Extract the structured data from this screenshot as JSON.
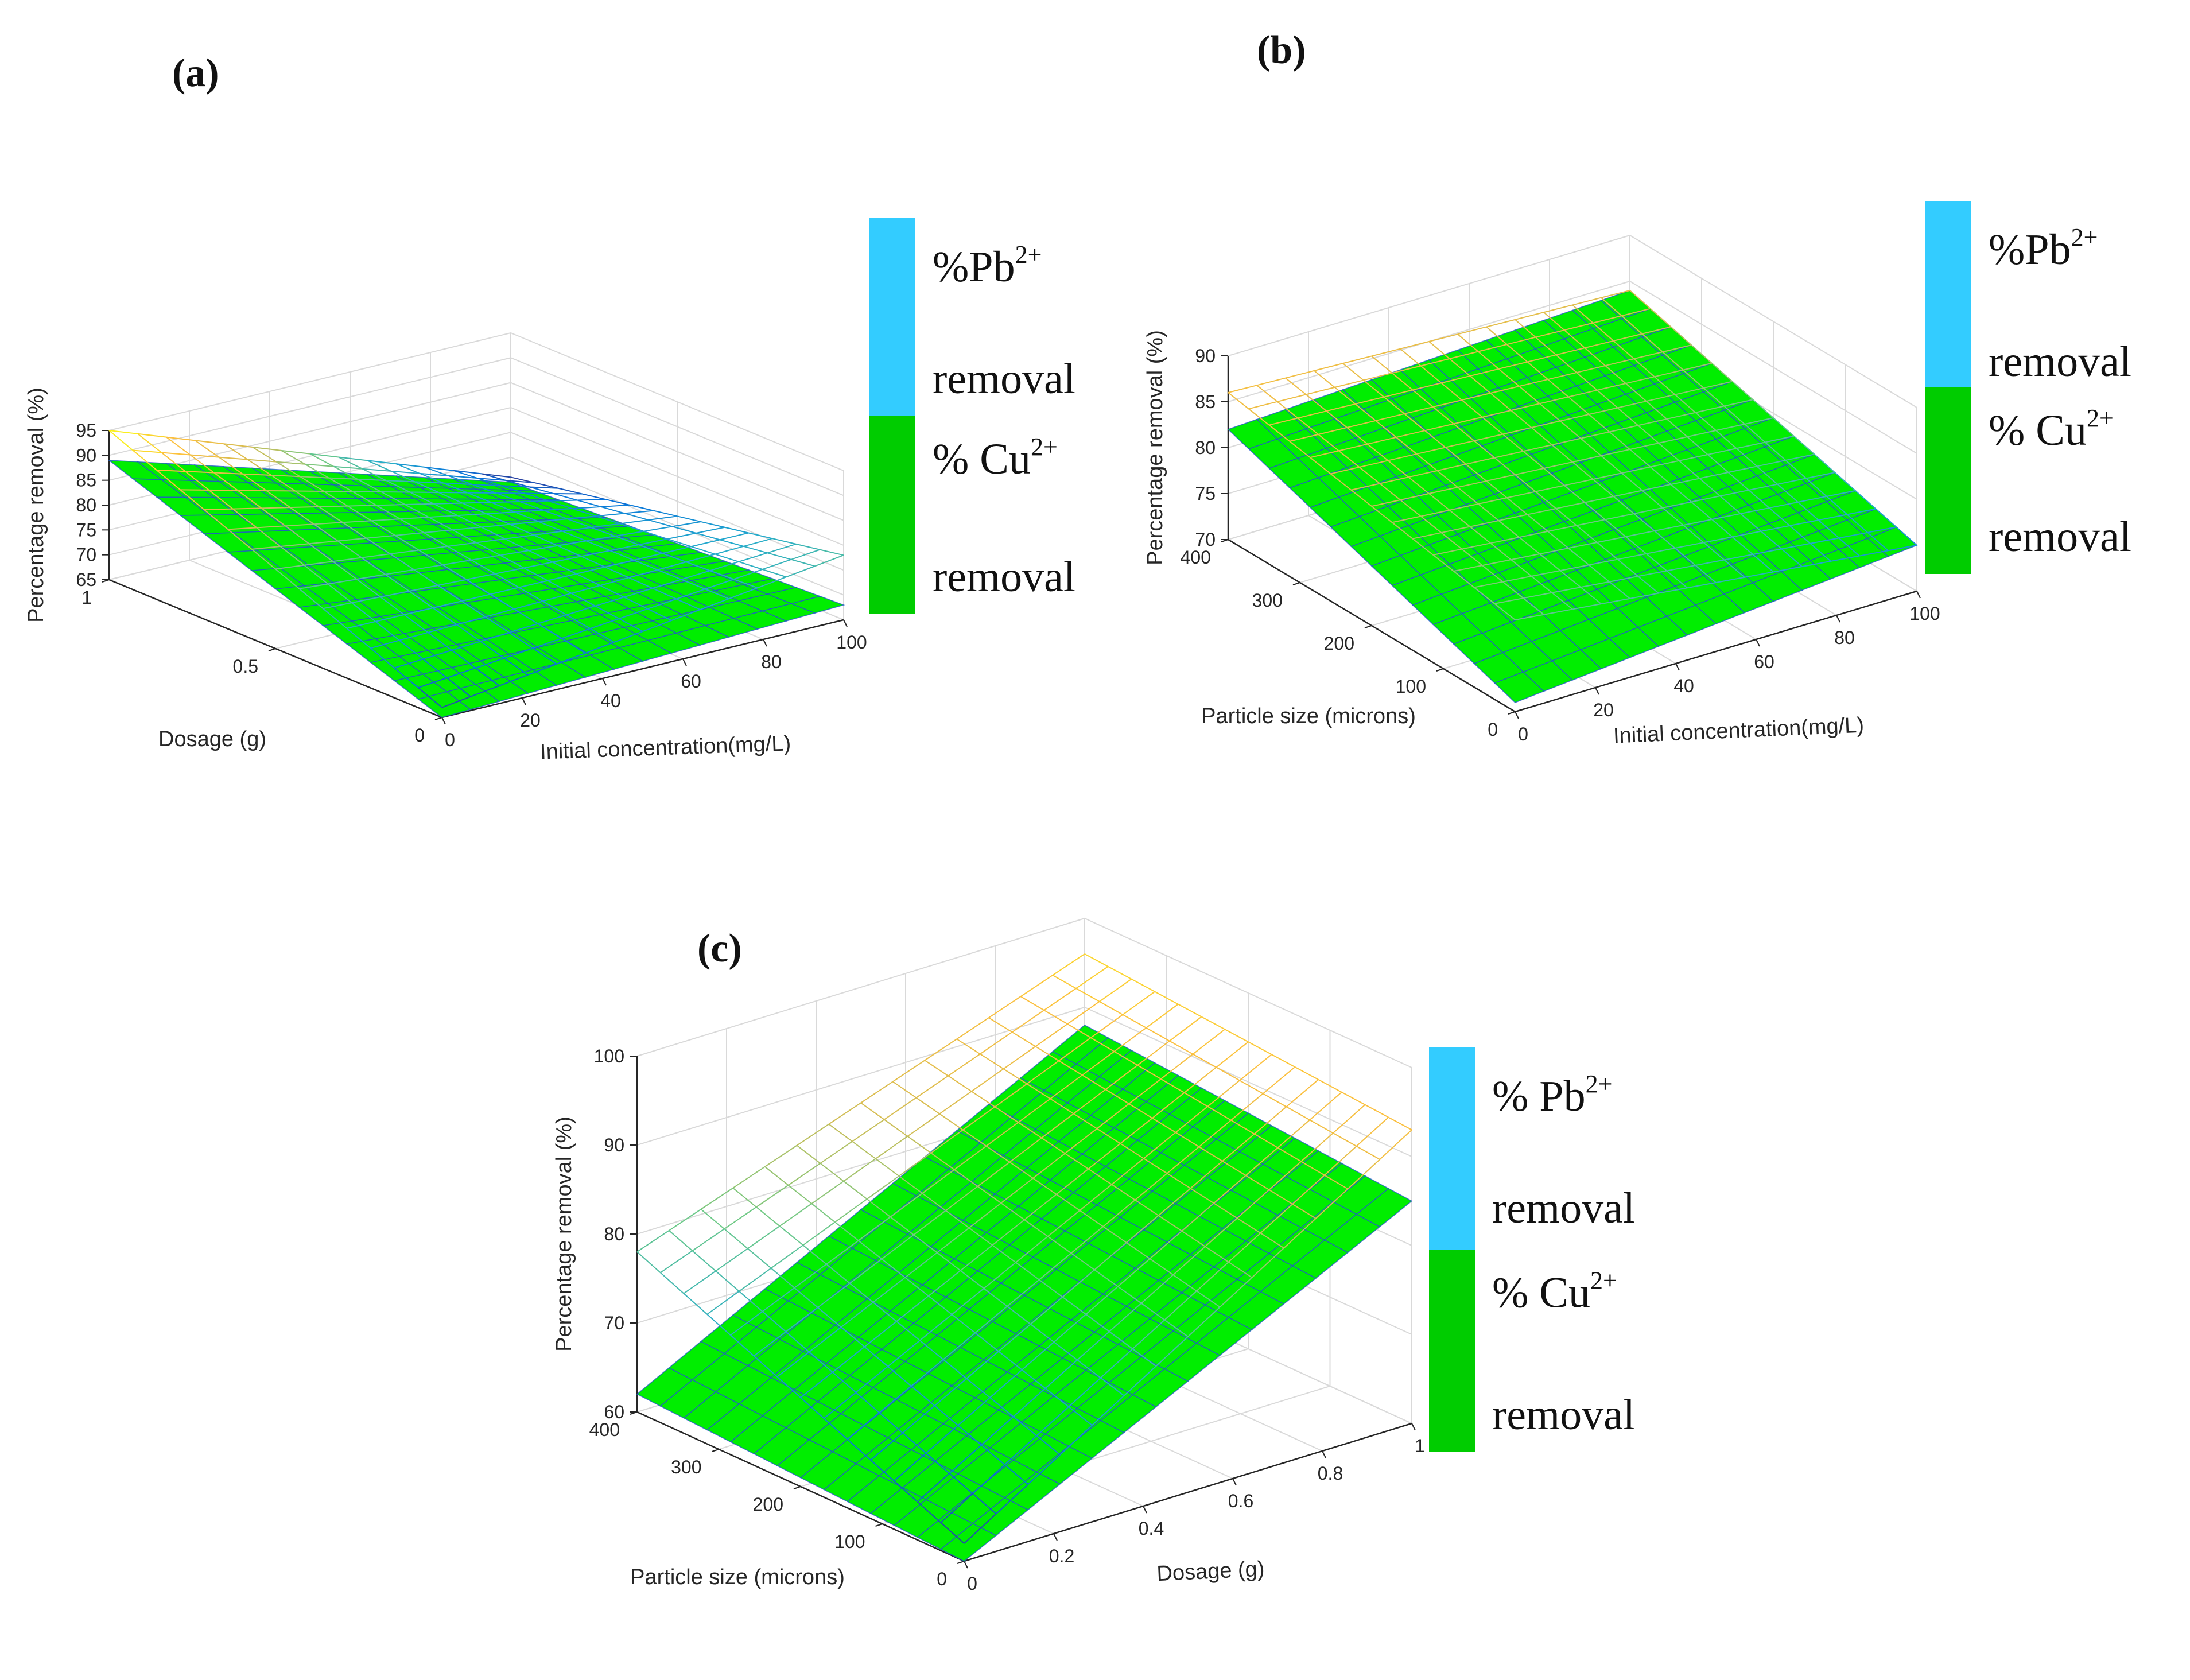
{
  "colors": {
    "pb_legend": "#33ccff",
    "cu_legend": "#00cc00",
    "cu_surface": "#00ee00",
    "cu_grid": "#2255cc",
    "axis": "#262626",
    "grid": "#d9d9d9"
  },
  "chart_data": [
    {
      "type": "surface",
      "panel_label": "(a)",
      "zlabel": "Percentage removal (%)",
      "xlabel": "Initial concentration(mg/L)",
      "ylabel": "Dosage (g)",
      "xlim": [
        0,
        100
      ],
      "ylim": [
        0,
        1
      ],
      "zlim": [
        65,
        95
      ],
      "xticks": [
        "0",
        "20",
        "40",
        "60",
        "80",
        "100"
      ],
      "yticks": [
        "0",
        "0.5",
        "1"
      ],
      "zticks": [
        "65",
        "70",
        "75",
        "80",
        "85",
        "90",
        "95"
      ],
      "series": [
        {
          "name": "Pb removal",
          "corners": {
            "x0_y0": 67,
            "x100_y0": 78,
            "x0_y1": 95,
            "x100_y1": 66
          }
        },
        {
          "name": "Cu removal",
          "corners": {
            "x0_y0": 65,
            "x100_y0": 68,
            "x0_y1": 89,
            "x100_y1": 65
          }
        }
      ],
      "legend": {
        "pb_prefix": "%Pb",
        "pb_sup": "2+",
        "pb_line2": "removal",
        "cu_prefix": "% Cu",
        "cu_sup": "2+",
        "cu_line2": "removal"
      }
    },
    {
      "type": "surface",
      "panel_label": "(b)",
      "zlabel": "Percentage removal (%)",
      "xlabel": "Initial concentration(mg/L)",
      "ylabel": "Particle size (microns)",
      "xlim": [
        0,
        100
      ],
      "ylim": [
        0,
        400
      ],
      "zlim": [
        70,
        90
      ],
      "xticks": [
        "0",
        "20",
        "40",
        "60",
        "80",
        "100"
      ],
      "yticks": [
        "0",
        "100",
        "200",
        "300",
        "400"
      ],
      "zticks": [
        "70",
        "75",
        "80",
        "85",
        "90"
      ],
      "series": [
        {
          "name": "Pb removal",
          "corners": {
            "x0_y0": 80,
            "x100_y0": 75,
            "x0_y1": 86,
            "x100_y1": 84
          }
        },
        {
          "name": "Cu removal",
          "corners": {
            "x0_y0": 71,
            "x100_y0": 75,
            "x0_y1": 82,
            "x100_y1": 84
          }
        }
      ],
      "legend": {
        "pb_prefix": "%Pb",
        "pb_sup": "2+",
        "pb_line2": "removal",
        "cu_prefix": "% Cu",
        "cu_sup": "2+",
        "cu_line2": "removal"
      }
    },
    {
      "type": "surface",
      "panel_label": "(c)",
      "zlabel": "Percentage removal (%)",
      "xlabel": "Dosage (g)",
      "ylabel": "Particle size (microns)",
      "xlim": [
        0,
        1
      ],
      "ylim": [
        0,
        400
      ],
      "zlim": [
        60,
        100
      ],
      "xticks": [
        "0",
        "0.2",
        "0.4",
        "0.6",
        "0.8",
        "1"
      ],
      "yticks": [
        "0",
        "100",
        "200",
        "300",
        "400"
      ],
      "zticks": [
        "60",
        "70",
        "80",
        "90",
        "100"
      ],
      "series": [
        {
          "name": "Pb removal",
          "corners": {
            "x0_y0": 62,
            "x100_y0": 93,
            "x0_y1": 78,
            "x100_y1": 96
          }
        },
        {
          "name": "Cu removal",
          "corners": {
            "x0_y0": 60,
            "x100_y0": 85,
            "x0_y1": 62,
            "x100_y1": 88
          }
        }
      ],
      "legend": {
        "pb_prefix": "% Pb",
        "pb_sup": "2+",
        "pb_line2": "removal",
        "cu_prefix": "% Cu",
        "cu_sup": "2+",
        "cu_line2": "removal"
      }
    }
  ]
}
